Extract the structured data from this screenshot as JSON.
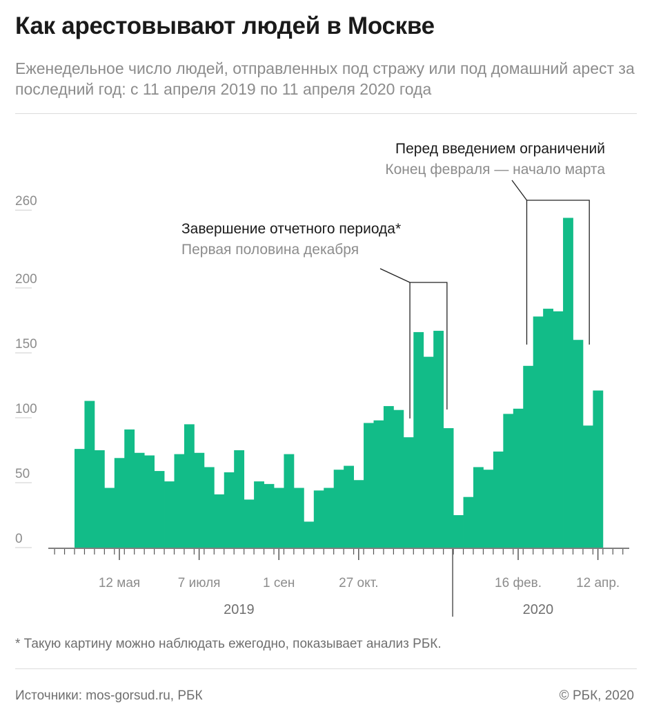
{
  "header": {
    "title": "Как арестовывают людей в Москве",
    "subtitle": "Еженедельное число людей, отправленных под стражу или под домашний арест за последний год: с 11 апреля 2019 по 11 апреля 2020 года"
  },
  "footer": {
    "footnote": "* Такую картину можно наблюдать ежегодно, показывает анализ РБК.",
    "source": "Источники: mos-gorsud.ru, РБК",
    "copyright": "© РБК, 2020"
  },
  "colors": {
    "bar": "#12bc88",
    "axis": "#555555",
    "grid": "#cccccc",
    "text_muted": "#8c8c8c"
  },
  "chart_data": {
    "type": "bar",
    "title": "Как арестовывают людей в Москве",
    "subtitle": "Еженедельное число людей, отправленных под стражу или под домашний арест за последний год: с 11 апреля 2019 по 11 апреля 2020 года",
    "xlabel": "",
    "ylabel": "",
    "ylim": [
      0,
      260
    ],
    "yticks": [
      0,
      50,
      100,
      150,
      200,
      260
    ],
    "grid": false,
    "values": [
      76,
      113,
      75,
      46,
      69,
      91,
      73,
      71,
      59,
      51,
      72,
      95,
      73,
      62,
      41,
      58,
      75,
      37,
      51,
      49,
      46,
      72,
      46,
      20,
      44,
      46,
      60,
      63,
      52,
      96,
      98,
      109,
      106,
      85,
      166,
      147,
      167,
      92,
      25,
      39,
      62,
      60,
      74,
      103,
      107,
      140,
      178,
      184,
      182,
      254,
      160,
      94,
      121
    ],
    "xticks": [
      {
        "label": "12 мая",
        "index": 4.5
      },
      {
        "label": "7 июля",
        "index": 12.5
      },
      {
        "label": "1 сен",
        "index": 20.5
      },
      {
        "label": "27 окт.",
        "index": 28.5
      },
      {
        "label": "16 фев.",
        "index": 44.5
      },
      {
        "label": "12 апр.",
        "index": 52.5
      }
    ],
    "year_labels": [
      {
        "label": "2019",
        "index": 16.5
      },
      {
        "label": "2020",
        "index": 46.5
      }
    ],
    "year_divider_index": 38,
    "annotations": [
      {
        "title": "Завершение отчетного периода*",
        "subtitle": "Первая половина декабря",
        "from_index": 33.5,
        "to_index": 37.5
      },
      {
        "title": "Перед введением ограничений",
        "subtitle": "Конец февраля — начало марта",
        "from_index": 45.5,
        "to_index": 51.5
      }
    ]
  }
}
